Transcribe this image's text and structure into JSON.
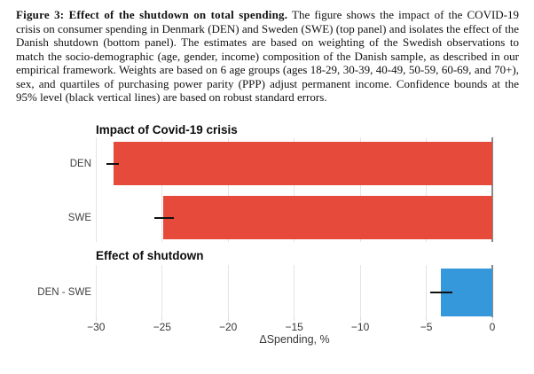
{
  "caption": {
    "label_bold": "Figure 3: Effect of the shutdown on total spending.",
    "body": " The figure shows the impact of the COVID-19 crisis on consumer spending in Denmark (DEN) and Sweden (SWE) (top panel) and isolates the effect of the Danish shutdown (bottom panel). The estimates are based on weighting of the Swedish observations to match the socio-demographic (age, gender, income) composition of the Danish sample, as described in our empirical framework. Weights are based on 6 age groups (ages 18-29, 30-39, 40-49, 50-59, 60-69, and 70+), sex, and quartiles of purchasing power parity (PPP) adjust permanent income. Confidence bounds at the 95% level (black vertical lines) are based on robust standard errors."
  },
  "chart_data": [
    {
      "type": "bar",
      "orientation": "horizontal",
      "title": "Impact of Covid-19 crisis",
      "categories": [
        "DEN",
        "SWE"
      ],
      "values": [
        -28.7,
        -24.9
      ],
      "ci": [
        [
          -29.2,
          -28.3
        ],
        [
          -25.6,
          -24.1
        ]
      ],
      "bar_color": "#e64a3b",
      "xlim": [
        -31,
        0.3
      ],
      "grid": "vertical",
      "legend": "none"
    },
    {
      "type": "bar",
      "orientation": "horizontal",
      "title": "Effect of shutdown",
      "categories": [
        "DEN - SWE"
      ],
      "values": [
        -3.9
      ],
      "ci": [
        [
          -4.7,
          -3.0
        ]
      ],
      "bar_color": "#3498db",
      "xlim": [
        -31,
        0.3
      ],
      "grid": "vertical",
      "legend": "none"
    }
  ],
  "axis": {
    "ticks": [
      -30,
      -25,
      -20,
      -15,
      -10,
      -5,
      0
    ],
    "tick_labels": [
      "−30",
      "−25",
      "−20",
      "−15",
      "−10",
      "−5",
      "0"
    ],
    "xlabel": "ΔSpending, %"
  },
  "colors": {
    "bar_red": "#e64a3b",
    "bar_blue": "#3498db",
    "gridline": "#e4e4e4",
    "zero_axis": "#8a8a8a",
    "error_bar": "#111111",
    "text": "#383838"
  }
}
